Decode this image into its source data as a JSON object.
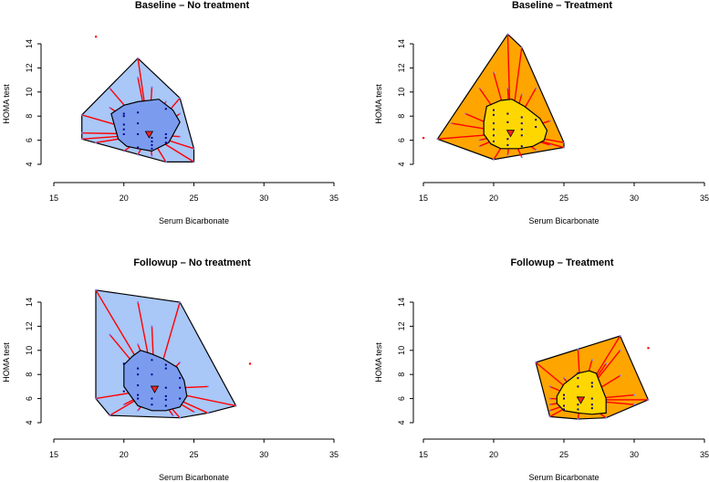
{
  "chart_data": [
    {
      "type": "bagplot",
      "title": "Baseline – No treatment",
      "xlabel": "Serum Bicarbonate",
      "ylabel": "HOMA test",
      "xlim": [
        15,
        35
      ],
      "ylim": [
        4,
        14
      ],
      "xticks": [
        15,
        20,
        25,
        30,
        35
      ],
      "yticks": [
        4,
        6,
        8,
        10,
        12,
        14
      ],
      "loop_color": "#a9c7f7",
      "bag_color": "#7b9cee",
      "loop": [
        [
          17,
          8.1
        ],
        [
          21,
          12.8
        ],
        [
          24,
          9.5
        ],
        [
          25,
          5.3
        ],
        [
          25,
          4.2
        ],
        [
          23,
          4.2
        ],
        [
          17,
          6.1
        ]
      ],
      "bag": [
        [
          19.1,
          8.2
        ],
        [
          20,
          8.9
        ],
        [
          21,
          9.2
        ],
        [
          22.5,
          9.4
        ],
        [
          23.5,
          8.5
        ],
        [
          24,
          7.5
        ],
        [
          23.2,
          5.8
        ],
        [
          22,
          5.1
        ],
        [
          21,
          5.3
        ],
        [
          20.2,
          5.5
        ],
        [
          19.6,
          6.1
        ]
      ],
      "median": [
        21.8,
        6.5
      ],
      "outliers": [
        [
          18,
          14.6
        ]
      ],
      "outer_points": [
        [
          21,
          12.8
        ],
        [
          21,
          11.2
        ],
        [
          22,
          10.4
        ],
        [
          19,
          10.3
        ],
        [
          17,
          8.1
        ],
        [
          17,
          6.6
        ],
        [
          17,
          6.1
        ],
        [
          18,
          5.8
        ],
        [
          20,
          5.1
        ],
        [
          21,
          4.8
        ],
        [
          22,
          4.7
        ],
        [
          23,
          4.2
        ],
        [
          25,
          4.2
        ],
        [
          25,
          5.3
        ],
        [
          24,
          9.5
        ],
        [
          24,
          8.2
        ],
        [
          24,
          6.3
        ],
        [
          19,
          8.7
        ],
        [
          23,
          9.2
        ]
      ],
      "inner_points": [
        [
          20,
          8.2
        ],
        [
          20,
          8
        ],
        [
          20,
          7.3
        ],
        [
          20,
          6.9
        ],
        [
          20,
          6.5
        ],
        [
          21,
          8.3
        ],
        [
          21,
          7.4
        ],
        [
          21,
          6.5
        ],
        [
          22,
          6.2
        ],
        [
          22,
          5.9
        ],
        [
          22,
          5.6
        ],
        [
          22,
          5.3
        ],
        [
          23,
          8.6
        ],
        [
          23,
          6.5
        ],
        [
          23,
          6.2
        ],
        [
          23,
          5.8
        ],
        [
          21,
          5.4
        ]
      ]
    },
    {
      "type": "bagplot",
      "title": "Baseline – Treatment",
      "xlabel": "Serum Bicarbonate",
      "ylabel": "HOMA test",
      "xlim": [
        15,
        35
      ],
      "ylim": [
        4,
        14
      ],
      "xticks": [
        15,
        20,
        25,
        30,
        35
      ],
      "yticks": [
        4,
        6,
        8,
        10,
        12,
        14
      ],
      "loop_color": "#ffa500",
      "bag_color": "#ffd700",
      "loop": [
        [
          16,
          6.1
        ],
        [
          21,
          14.8
        ],
        [
          22,
          13.7
        ],
        [
          25,
          5.8
        ],
        [
          25,
          5.4
        ],
        [
          20,
          4.4
        ]
      ],
      "bag": [
        [
          19.5,
          8.8
        ],
        [
          20.5,
          9.3
        ],
        [
          21.3,
          9.4
        ],
        [
          22.2,
          8.8
        ],
        [
          23.3,
          7.8
        ],
        [
          23.8,
          6.8
        ],
        [
          23.6,
          6
        ],
        [
          22.8,
          5.5
        ],
        [
          21.8,
          5.3
        ],
        [
          20.5,
          5.3
        ],
        [
          19.8,
          5.7
        ],
        [
          19.3,
          6.5
        ],
        [
          19.3,
          7.5
        ]
      ],
      "median": [
        21.2,
        6.6
      ],
      "outliers": [
        [
          15,
          6.2
        ]
      ],
      "outer_points": [
        [
          21,
          14.8
        ],
        [
          22,
          13.7
        ],
        [
          20,
          11.6
        ],
        [
          19,
          10.3
        ],
        [
          23,
          10.3
        ],
        [
          22,
          9.8
        ],
        [
          21,
          10.3
        ],
        [
          18,
          8.2
        ],
        [
          17,
          7.4
        ],
        [
          16,
          6.1
        ],
        [
          19,
          5.5
        ],
        [
          19,
          6
        ],
        [
          20,
          4.4
        ],
        [
          22,
          4.6
        ],
        [
          23,
          5.2
        ],
        [
          24,
          5.6
        ],
        [
          25,
          5.8
        ],
        [
          25,
          5.4
        ],
        [
          24,
          7.6
        ],
        [
          21,
          4.8
        ]
      ],
      "inner_points": [
        [
          20,
          8.5
        ],
        [
          20,
          8.1
        ],
        [
          20,
          7.4
        ],
        [
          20,
          6.9
        ],
        [
          20,
          6.4
        ],
        [
          20,
          5.9
        ],
        [
          21,
          8.2
        ],
        [
          21,
          7.5
        ],
        [
          21,
          6.1
        ],
        [
          21,
          5.6
        ],
        [
          22,
          7.9
        ],
        [
          22,
          7.4
        ],
        [
          22,
          6.9
        ],
        [
          22,
          6.4
        ],
        [
          22,
          5.5
        ],
        [
          23,
          7.7
        ],
        [
          23,
          7.1
        ]
      ]
    },
    {
      "type": "bagplot",
      "title": "Followup – No treatment",
      "xlabel": "Serum Bicarbonate",
      "ylabel": "HOMA test",
      "xlim": [
        15,
        35
      ],
      "ylim": [
        4,
        14
      ],
      "xticks": [
        15,
        20,
        25,
        30,
        35
      ],
      "yticks": [
        4,
        6,
        8,
        10,
        12,
        14
      ],
      "loop_color": "#a9c7f7",
      "bag_color": "#7b9cee",
      "loop": [
        [
          18,
          15
        ],
        [
          24,
          14
        ],
        [
          28,
          5.4
        ],
        [
          26,
          4.8
        ],
        [
          24,
          4.4
        ],
        [
          19,
          4.6
        ],
        [
          18,
          6
        ]
      ],
      "bag": [
        [
          20.6,
          9.5
        ],
        [
          21.2,
          10
        ],
        [
          22,
          9.7
        ],
        [
          22.8,
          9.3
        ],
        [
          23.8,
          8.6
        ],
        [
          24.3,
          7.5
        ],
        [
          24.5,
          6.2
        ],
        [
          24,
          5.3
        ],
        [
          23,
          5
        ],
        [
          22,
          5
        ],
        [
          21,
          5.4
        ],
        [
          20.5,
          6.2
        ],
        [
          20,
          7
        ],
        [
          20,
          8.8
        ]
      ],
      "median": [
        22.2,
        6.8
      ],
      "outliers": [
        [
          29,
          8.9
        ]
      ],
      "outer_points": [
        [
          18,
          15
        ],
        [
          24,
          14
        ],
        [
          21,
          14
        ],
        [
          22,
          12
        ],
        [
          19,
          11.3
        ],
        [
          21,
          10.5
        ],
        [
          24,
          9
        ],
        [
          26,
          7
        ],
        [
          28,
          5.4
        ],
        [
          26,
          4.8
        ],
        [
          25,
          4.9
        ],
        [
          24,
          4.4
        ],
        [
          23.5,
          4.6
        ],
        [
          19,
          4.6
        ],
        [
          18,
          6
        ],
        [
          20,
          5.5
        ],
        [
          21,
          5
        ]
      ],
      "inner_points": [
        [
          21,
          8.5
        ],
        [
          21,
          8
        ],
        [
          21,
          7.1
        ],
        [
          21,
          6.3
        ],
        [
          21,
          6
        ],
        [
          22,
          9.2
        ],
        [
          22,
          8
        ],
        [
          22,
          6
        ],
        [
          22,
          5.5
        ],
        [
          23,
          8.8
        ],
        [
          23,
          8.5
        ],
        [
          23,
          6.9
        ],
        [
          23,
          6.2
        ],
        [
          23,
          5.9
        ],
        [
          23,
          5.4
        ],
        [
          24,
          7.7
        ],
        [
          24,
          6.9
        ],
        [
          24,
          6
        ],
        [
          20,
          6.6
        ],
        [
          20,
          8.9
        ]
      ]
    },
    {
      "type": "bagplot",
      "title": "Followup – Treatment",
      "xlabel": "Serum Bicarbonate",
      "ylabel": "HOMA test",
      "xlim": [
        15,
        35
      ],
      "ylim": [
        4,
        14
      ],
      "xticks": [
        15,
        20,
        25,
        30,
        35
      ],
      "yticks": [
        4,
        6,
        8,
        10,
        12,
        14
      ],
      "loop_color": "#ffa500",
      "bag_color": "#ffd700",
      "loop": [
        [
          23,
          9
        ],
        [
          29,
          11.2
        ],
        [
          31,
          5.9
        ],
        [
          28,
          4.4
        ],
        [
          26,
          4.3
        ],
        [
          24,
          4.5
        ]
      ],
      "bag": [
        [
          25,
          7.2
        ],
        [
          26,
          8.1
        ],
        [
          26.8,
          8.3
        ],
        [
          27.3,
          8.1
        ],
        [
          28,
          6
        ],
        [
          28,
          4.8
        ],
        [
          27,
          4.7
        ],
        [
          26,
          4.8
        ],
        [
          25,
          5
        ],
        [
          24.5,
          5.6
        ],
        [
          24.5,
          6.2
        ]
      ],
      "median": [
        26.2,
        5.9
      ],
      "outliers": [
        [
          31,
          10.2
        ]
      ],
      "outer_points": [
        [
          23,
          9
        ],
        [
          29,
          11.2
        ],
        [
          29,
          10
        ],
        [
          26,
          10.1
        ],
        [
          27,
          9.2
        ],
        [
          28,
          8.9
        ],
        [
          29,
          7.9
        ],
        [
          31,
          5.9
        ],
        [
          30,
          5.5
        ],
        [
          28,
          4.4
        ],
        [
          26,
          4.3
        ],
        [
          24,
          4.5
        ],
        [
          24,
          5
        ],
        [
          24,
          5.5
        ],
        [
          24,
          6
        ],
        [
          24,
          7
        ],
        [
          25,
          7.7
        ],
        [
          30,
          6.3
        ]
      ],
      "inner_points": [
        [
          25,
          6.3
        ],
        [
          25,
          6
        ],
        [
          25,
          5.4
        ],
        [
          25,
          5.1
        ],
        [
          26,
          7.7
        ],
        [
          26,
          7
        ],
        [
          26,
          6.1
        ],
        [
          26,
          5.5
        ],
        [
          26,
          5.1
        ],
        [
          27,
          7.3
        ],
        [
          27,
          7
        ],
        [
          27,
          6
        ],
        [
          27,
          5.5
        ],
        [
          27,
          5.2
        ],
        [
          26,
          8.1
        ]
      ]
    }
  ]
}
